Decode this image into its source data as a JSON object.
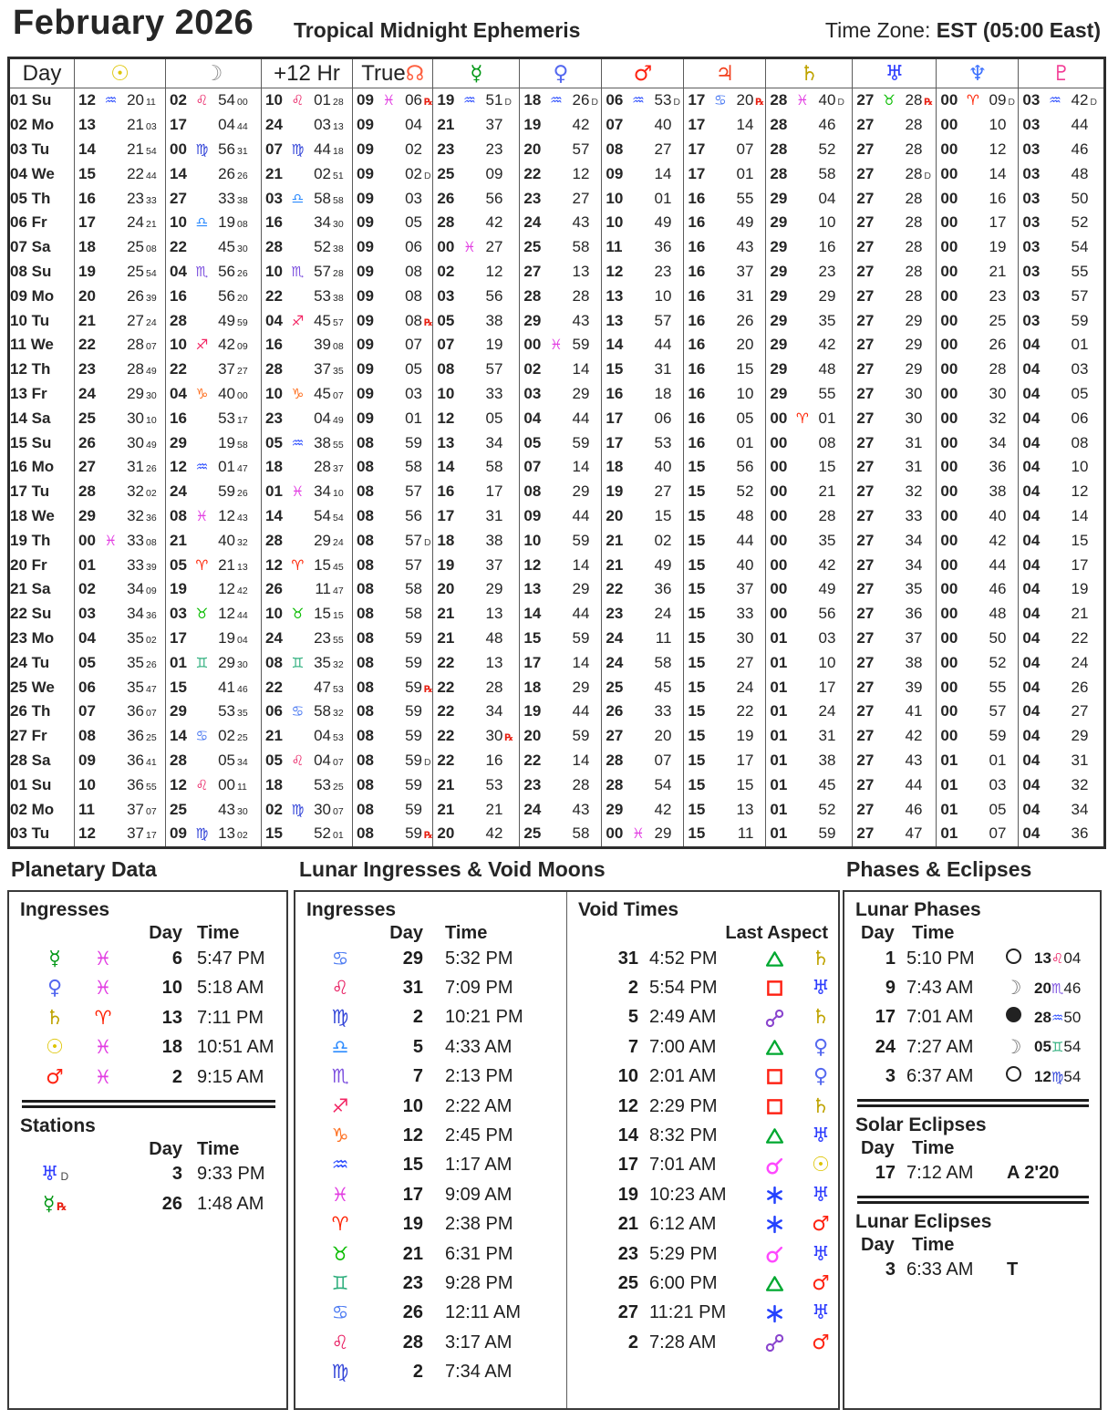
{
  "header": {
    "title": "February 2026",
    "subtitle": "Tropical Midnight Ephemeris",
    "timezone_label": "Time Zone:",
    "timezone_value": "EST  (05:00 East)"
  },
  "glyphs": {
    "planets": {
      "sun": {
        "ch": "☉",
        "color": "#ddc400"
      },
      "moon": {
        "ch": "☽",
        "color": "#8d8d8d"
      },
      "node": {
        "ch": "☊",
        "color": "#fe6040"
      },
      "mercury": {
        "ch": "☿",
        "color": "#009714"
      },
      "venus": {
        "ch": "♀",
        "color": "#5468ef"
      },
      "mars": {
        "ch": "♂",
        "color": "#fe2312"
      },
      "jupiter": {
        "ch": "♃",
        "color": "#f2411e"
      },
      "saturn": {
        "ch": "♄",
        "color": "#bfa300"
      },
      "uranus": {
        "ch": "♅",
        "color": "#2d3cfe"
      },
      "neptune": {
        "ch": "♆",
        "color": "#3e72fe"
      },
      "pluto": {
        "ch": "♇",
        "color": "#f23c95"
      }
    },
    "signs": {
      "ar": {
        "name": "aries",
        "ch": "♈",
        "color": "#fe2000"
      },
      "ta": {
        "name": "taurus",
        "ch": "♉",
        "color": "#09bc00"
      },
      "ge": {
        "name": "gemini",
        "ch": "♊",
        "color": "#2dae7c"
      },
      "cn": {
        "name": "cancer",
        "ch": "♋",
        "color": "#4e7cf2"
      },
      "le": {
        "name": "leo",
        "ch": "♌",
        "color": "#e81e62"
      },
      "vi": {
        "name": "virgo",
        "ch": "♍",
        "color": "#3345d8"
      },
      "li": {
        "name": "libra",
        "ch": "♎",
        "color": "#2d8bfe"
      },
      "sc": {
        "name": "scorpio",
        "ch": "♏",
        "color": "#7d51df"
      },
      "sg": {
        "name": "sagittarius",
        "ch": "♐",
        "color": "#f22664"
      },
      "cp": {
        "name": "capricorn",
        "ch": "♑",
        "color": "#fe7021"
      },
      "aq": {
        "name": "aquarius",
        "ch": "♒",
        "color": "#2e4ffe"
      },
      "pi": {
        "name": "pisces",
        "ch": "♓",
        "color": "#e23ee2"
      }
    },
    "aspects": {
      "trine": {
        "color": "#00a830"
      },
      "square": {
        "color": "#fe2012"
      },
      "sextile": {
        "color": "#2442fe"
      },
      "conjunction": {
        "color": "#fe49fe"
      },
      "opposition": {
        "color": "#8a45ce"
      }
    },
    "retrograde_mark": "℞",
    "direct_mark": "D"
  },
  "table": {
    "columns": [
      {
        "name": "day",
        "type": "text",
        "label": "Day"
      },
      {
        "name": "sun",
        "type": "planet",
        "planet": "sun"
      },
      {
        "name": "moon",
        "type": "planet",
        "planet": "moon"
      },
      {
        "name": "plus12hr",
        "type": "text",
        "label": "+12 Hr"
      },
      {
        "name": "true-node",
        "type": "node",
        "label": "True"
      },
      {
        "name": "mercury",
        "type": "planet",
        "planet": "mercury"
      },
      {
        "name": "venus",
        "type": "planet",
        "planet": "venus"
      },
      {
        "name": "mars",
        "type": "planet",
        "planet": "mars"
      },
      {
        "name": "jupiter",
        "type": "planet",
        "planet": "jupiter"
      },
      {
        "name": "saturn",
        "type": "planet",
        "planet": "saturn"
      },
      {
        "name": "uranus",
        "type": "planet",
        "planet": "uranus"
      },
      {
        "name": "neptune",
        "type": "planet",
        "planet": "neptune"
      },
      {
        "name": "pluto",
        "type": "planet",
        "planet": "pluto"
      }
    ],
    "rows": [
      [
        "01 Su",
        "12|aq|20|11|",
        "02|le|54|00|",
        "10|le|01|28|",
        "09|pi|06||R",
        "19|aq|51||D",
        "18|aq|26||D",
        "06|aq|53||D",
        "17|cn|20||R",
        "28|pi|40||D",
        "27|ta|28||R",
        "00|ar|09||D",
        "03|aq|42||D"
      ],
      [
        "02 Mo",
        "13||21|03|",
        "17||04|44|",
        "24||03|13|",
        "09||04||",
        "21||37||",
        "19||42||",
        "07||40||",
        "17||14||",
        "28||46||",
        "27||28||",
        "00||10||",
        "03||44||"
      ],
      [
        "03 Tu",
        "14||21|54|",
        "00|vi|56|31|",
        "07|vi|44|18|",
        "09||02||",
        "23||23||",
        "20||57||",
        "08||27||",
        "17||07||",
        "28||52||",
        "27||28||",
        "00||12||",
        "03||46||"
      ],
      [
        "04 We",
        "15||22|44|",
        "14||26|26|",
        "21||02|51|",
        "09||02||D",
        "25||09||",
        "22||12||",
        "09||14||",
        "17||01||",
        "28||58||",
        "27||28||D",
        "00||14||",
        "03||48||"
      ],
      [
        "05 Th",
        "16||23|33|",
        "27||33|38|",
        "03|li|58|58|",
        "09||03||",
        "26||56||",
        "23||27||",
        "10||01||",
        "16||55||",
        "29||04||",
        "27||28||",
        "00||16||",
        "03||50||"
      ],
      [
        "06 Fr",
        "17||24|21|",
        "10|li|19|08|",
        "16||34|30|",
        "09||05||",
        "28||42||",
        "24||43||",
        "10||49||",
        "16||49||",
        "29||10||",
        "27||28||",
        "00||17||",
        "03||52||"
      ],
      [
        "07 Sa",
        "18||25|08|",
        "22||45|30|",
        "28||52|38|",
        "09||06||",
        "00|pi|27||",
        "25||58||",
        "11||36||",
        "16||43||",
        "29||16||",
        "27||28||",
        "00||19||",
        "03||54||"
      ],
      [
        "08 Su",
        "19||25|54|",
        "04|sc|56|26|",
        "10|sc|57|28|",
        "09||08||",
        "02||12||",
        "27||13||",
        "12||23||",
        "16||37||",
        "29||23||",
        "27||28||",
        "00||21||",
        "03||55||"
      ],
      [
        "09 Mo",
        "20||26|39|",
        "16||56|20|",
        "22||53|38|",
        "09||08||",
        "03||56||",
        "28||28||",
        "13||10||",
        "16||31||",
        "29||29||",
        "27||28||",
        "00||23||",
        "03||57||"
      ],
      [
        "10 Tu",
        "21||27|24|",
        "28||49|59|",
        "04|sg|45|57|",
        "09||08||R",
        "05||38||",
        "29||43||",
        "13||57||",
        "16||26||",
        "29||35||",
        "27||29||",
        "00||25||",
        "03||59||"
      ],
      [
        "11 We",
        "22||28|07|",
        "10|sg|42|09|",
        "16||39|08|",
        "09||07||",
        "07||19||",
        "00|pi|59||",
        "14||44||",
        "16||20||",
        "29||42||",
        "27||29||",
        "00||26||",
        "04||01||"
      ],
      [
        "12 Th",
        "23||28|49|",
        "22||37|27|",
        "28||37|35|",
        "09||05||",
        "08||57||",
        "02||14||",
        "15||31||",
        "16||15||",
        "29||48||",
        "27||29||",
        "00||28||",
        "04||03||"
      ],
      [
        "13 Fr",
        "24||29|30|",
        "04|cp|40|00|",
        "10|cp|45|07|",
        "09||03||",
        "10||33||",
        "03||29||",
        "16||18||",
        "16||10||",
        "29||55||",
        "27||30||",
        "00||30||",
        "04||05||"
      ],
      [
        "14 Sa",
        "25||30|10|",
        "16||53|17|",
        "23||04|49|",
        "09||01||",
        "12||05||",
        "04||44||",
        "17||06||",
        "16||05||",
        "00|ar|01||",
        "27||30||",
        "00||32||",
        "04||06||"
      ],
      [
        "15 Su",
        "26||30|49|",
        "29||19|58|",
        "05|aq|38|55|",
        "08||59||",
        "13||34||",
        "05||59||",
        "17||53||",
        "16||01||",
        "00||08||",
        "27||31||",
        "00||34||",
        "04||08||"
      ],
      [
        "16 Mo",
        "27||31|26|",
        "12|aq|01|47|",
        "18||28|37|",
        "08||58||",
        "14||58||",
        "07||14||",
        "18||40||",
        "15||56||",
        "00||15||",
        "27||31||",
        "00||36||",
        "04||10||"
      ],
      [
        "17 Tu",
        "28||32|02|",
        "24||59|26|",
        "01|pi|34|10|",
        "08||57||",
        "16||17||",
        "08||29||",
        "19||27||",
        "15||52||",
        "00||21||",
        "27||32||",
        "00||38||",
        "04||12||"
      ],
      [
        "18 We",
        "29||32|36|",
        "08|pi|12|43|",
        "14||54|54|",
        "08||56||",
        "17||31||",
        "09||44||",
        "20||15||",
        "15||48||",
        "00||28||",
        "27||33||",
        "00||40||",
        "04||14||"
      ],
      [
        "19 Th",
        "00|pi|33|08|",
        "21||40|32|",
        "28||29|24|",
        "08||57||D",
        "18||38||",
        "10||59||",
        "21||02||",
        "15||44||",
        "00||35||",
        "27||34||",
        "00||42||",
        "04||15||"
      ],
      [
        "20 Fr",
        "01||33|39|",
        "05|ar|21|13|",
        "12|ar|15|45|",
        "08||57||",
        "19||37||",
        "12||14||",
        "21||49||",
        "15||40||",
        "00||42||",
        "27||34||",
        "00||44||",
        "04||17||"
      ],
      [
        "21 Sa",
        "02||34|09|",
        "19||12|42|",
        "26||11|47|",
        "08||58||",
        "20||29||",
        "13||29||",
        "22||36||",
        "15||37||",
        "00||49||",
        "27||35||",
        "00||46||",
        "04||19||"
      ],
      [
        "22 Su",
        "03||34|36|",
        "03|ta|12|44|",
        "10|ta|15|15|",
        "08||58||",
        "21||13||",
        "14||44||",
        "23||24||",
        "15||33||",
        "00||56||",
        "27||36||",
        "00||48||",
        "04||21||"
      ],
      [
        "23 Mo",
        "04||35|02|",
        "17||19|04|",
        "24||23|55|",
        "08||59||",
        "21||48||",
        "15||59||",
        "24||11||",
        "15||30||",
        "01||03||",
        "27||37||",
        "00||50||",
        "04||22||"
      ],
      [
        "24 Tu",
        "05||35|26|",
        "01|ge|29|30|",
        "08|ge|35|32|",
        "08||59||",
        "22||13||",
        "17||14||",
        "24||58||",
        "15||27||",
        "01||10||",
        "27||38||",
        "00||52||",
        "04||24||"
      ],
      [
        "25 We",
        "06||35|47|",
        "15||41|46|",
        "22||47|53|",
        "08||59||R",
        "22||28||",
        "18||29||",
        "25||45||",
        "15||24||",
        "01||17||",
        "27||39||",
        "00||55||",
        "04||26||"
      ],
      [
        "26 Th",
        "07||36|07|",
        "29||53|35|",
        "06|cn|58|32|",
        "08||59||",
        "22||34||",
        "19||44||",
        "26||33||",
        "15||22||",
        "01||24||",
        "27||41||",
        "00||57||",
        "04||27||"
      ],
      [
        "27 Fr",
        "08||36|25|",
        "14|cn|02|25|",
        "21||04|53|",
        "08||59||",
        "22||30||R",
        "20||59||",
        "27||20||",
        "15||19||",
        "01||31||",
        "27||42||",
        "00||59||",
        "04||29||"
      ],
      [
        "28 Sa",
        "09||36|41|",
        "28||05|34|",
        "05|le|04|07|",
        "08||59||D",
        "22||16||",
        "22||14||",
        "28||07||",
        "15||17||",
        "01||38||",
        "27||43||",
        "01||01||",
        "04||31||"
      ],
      [
        "01 Su",
        "10||36|55|",
        "12|le|00|11|",
        "18||53|25|",
        "08||59||",
        "21||53||",
        "23||28||",
        "28||54||",
        "15||15||",
        "01||45||",
        "27||44||",
        "01||03||",
        "04||32||"
      ],
      [
        "02 Mo",
        "11||37|07|",
        "25||43|30|",
        "02|vi|30|07|",
        "08||59||",
        "21||21||",
        "24||43||",
        "29||42||",
        "15||13||",
        "01||52||",
        "27||46||",
        "01||05||",
        "04||34||"
      ],
      [
        "03 Tu",
        "12||37|17|",
        "09|vi|13|02|",
        "15||52|01|",
        "08||59||R",
        "20||42||",
        "25||58||",
        "00|pi|29||",
        "15||11||",
        "01||59||",
        "27||47||",
        "01||07||",
        "04||36||"
      ]
    ]
  },
  "panels": {
    "planetary": {
      "title": "Planetary Data",
      "ingresses_heading": "Ingresses",
      "stations_heading": "Stations",
      "day_col": "Day",
      "time_col": "Time",
      "ingresses": [
        {
          "planet": "mercury",
          "sign": "pi",
          "day": "6",
          "time": "5:47 PM"
        },
        {
          "planet": "venus",
          "sign": "pi",
          "day": "10",
          "time": "5:18 AM"
        },
        {
          "planet": "saturn",
          "sign": "ar",
          "day": "13",
          "time": "7:11 PM"
        },
        {
          "planet": "sun",
          "sign": "pi",
          "day": "18",
          "time": "10:51 AM"
        },
        {
          "planet": "mars",
          "sign": "pi",
          "day": "2",
          "time": "9:15 AM"
        }
      ],
      "stations": [
        {
          "planet": "uranus",
          "flag": "D",
          "day": "3",
          "time": "9:33 PM"
        },
        {
          "planet": "mercury",
          "flag": "R",
          "day": "26",
          "time": "1:48 AM"
        }
      ]
    },
    "lunar": {
      "title": "Lunar Ingresses & Void Moons",
      "ingresses_heading": "Ingresses",
      "void_heading": "Void Times",
      "last_aspect_label": "Last Aspect",
      "day_col": "Day",
      "time_col": "Time",
      "ingresses": [
        {
          "sign": "cn",
          "day": "29",
          "time": "5:32 PM"
        },
        {
          "sign": "le",
          "day": "31",
          "time": "7:09 PM"
        },
        {
          "sign": "vi",
          "day": "2",
          "time": "10:21 PM"
        },
        {
          "sign": "li",
          "day": "5",
          "time": "4:33 AM"
        },
        {
          "sign": "sc",
          "day": "7",
          "time": "2:13 PM"
        },
        {
          "sign": "sg",
          "day": "10",
          "time": "2:22 AM"
        },
        {
          "sign": "cp",
          "day": "12",
          "time": "2:45 PM"
        },
        {
          "sign": "aq",
          "day": "15",
          "time": "1:17 AM"
        },
        {
          "sign": "pi",
          "day": "17",
          "time": "9:09 AM"
        },
        {
          "sign": "ar",
          "day": "19",
          "time": "2:38 PM"
        },
        {
          "sign": "ta",
          "day": "21",
          "time": "6:31 PM"
        },
        {
          "sign": "ge",
          "day": "23",
          "time": "9:28 PM"
        },
        {
          "sign": "cn",
          "day": "26",
          "time": "12:11 AM"
        },
        {
          "sign": "le",
          "day": "28",
          "time": "3:17 AM"
        },
        {
          "sign": "vi",
          "day": "2",
          "time": "7:34 AM"
        }
      ],
      "voids": [
        {
          "day": "31",
          "time": "4:52 PM",
          "aspect": "trine",
          "planet": "saturn"
        },
        {
          "day": "2",
          "time": "5:54 PM",
          "aspect": "square",
          "planet": "uranus"
        },
        {
          "day": "5",
          "time": "2:49 AM",
          "aspect": "opposition",
          "planet": "saturn"
        },
        {
          "day": "7",
          "time": "7:00 AM",
          "aspect": "trine",
          "planet": "venus"
        },
        {
          "day": "10",
          "time": "2:01 AM",
          "aspect": "square",
          "planet": "venus"
        },
        {
          "day": "12",
          "time": "2:29 PM",
          "aspect": "square",
          "planet": "saturn"
        },
        {
          "day": "14",
          "time": "8:32 PM",
          "aspect": "trine",
          "planet": "uranus"
        },
        {
          "day": "17",
          "time": "7:01 AM",
          "aspect": "conjunction",
          "planet": "sun"
        },
        {
          "day": "19",
          "time": "10:23 AM",
          "aspect": "sextile",
          "planet": "uranus"
        },
        {
          "day": "21",
          "time": "6:12 AM",
          "aspect": "sextile",
          "planet": "mars"
        },
        {
          "day": "23",
          "time": "5:29 PM",
          "aspect": "conjunction",
          "planet": "uranus"
        },
        {
          "day": "25",
          "time": "6:00 PM",
          "aspect": "trine",
          "planet": "mars"
        },
        {
          "day": "27",
          "time": "11:21 PM",
          "aspect": "sextile",
          "planet": "uranus"
        },
        {
          "day": "2",
          "time": "7:28 AM",
          "aspect": "opposition",
          "planet": "mars"
        }
      ]
    },
    "phases": {
      "title": "Phases & Eclipses",
      "lunar_heading": "Lunar Phases",
      "solar_heading": "Solar Eclipses",
      "lunar_ecl_heading": "Lunar Eclipses",
      "day_col": "Day",
      "time_col": "Time",
      "lunar_phases": [
        {
          "day": "1",
          "time": "5:10 PM",
          "phase": "full",
          "pos": "13|le|04"
        },
        {
          "day": "9",
          "time": "7:43 AM",
          "phase": "quarter",
          "pos": "20|sc|46"
        },
        {
          "day": "17",
          "time": "7:01 AM",
          "phase": "new",
          "pos": "28|aq|50"
        },
        {
          "day": "24",
          "time": "7:27 AM",
          "phase": "quarter",
          "pos": "05|ge|54"
        },
        {
          "day": "3",
          "time": "6:37 AM",
          "phase": "full",
          "pos": "12|vi|54"
        }
      ],
      "solar_eclipses": [
        {
          "day": "17",
          "time": "7:12 AM",
          "note": "A  2'20"
        }
      ],
      "lunar_eclipses": [
        {
          "day": "3",
          "time": "6:33 AM",
          "note": "T"
        }
      ]
    }
  }
}
